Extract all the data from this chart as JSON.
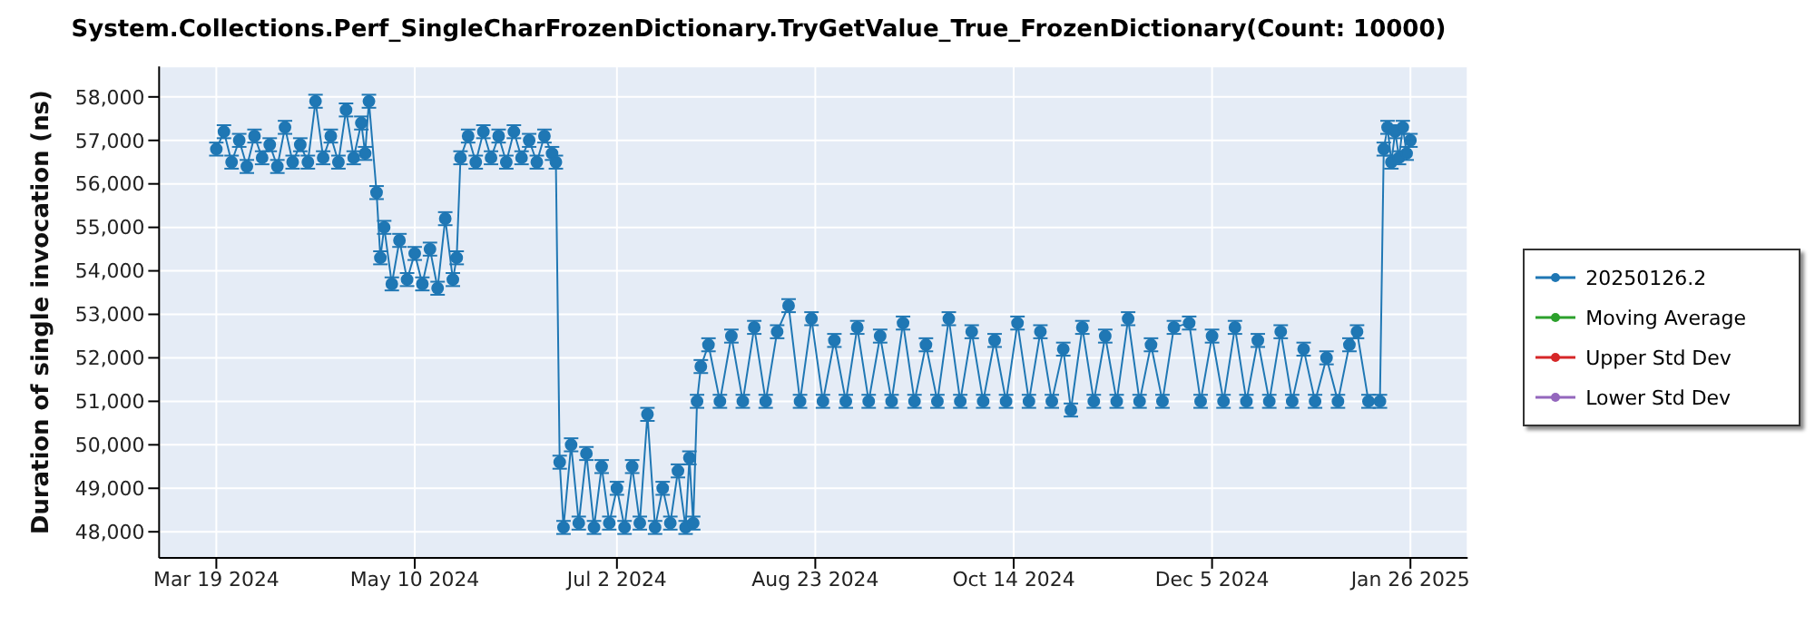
{
  "chart_data": {
    "type": "line",
    "title": "System.Collections.Perf_SingleCharFrozenDictionary.TryGetValue_True_FrozenDictionary(Count: 10000)",
    "ylabel": "Duration of single invocation (ns)",
    "xlim": [
      "2024-03-04",
      "2025-02-10"
    ],
    "xticks": [
      {
        "value": "2024-03-19",
        "label": "Mar 19 2024"
      },
      {
        "value": "2024-05-10",
        "label": "May 10 2024"
      },
      {
        "value": "2024-07-02",
        "label": "Jul 2 2024"
      },
      {
        "value": "2024-08-23",
        "label": "Aug 23 2024"
      },
      {
        "value": "2024-10-14",
        "label": "Oct 14 2024"
      },
      {
        "value": "2024-12-05",
        "label": "Dec 5 2024"
      },
      {
        "value": "2025-01-26",
        "label": "Jan 26 2025"
      }
    ],
    "ylim": [
      47400,
      58700
    ],
    "yticks": [
      {
        "value": 48000,
        "label": "48,000"
      },
      {
        "value": 49000,
        "label": "49,000"
      },
      {
        "value": 50000,
        "label": "50,000"
      },
      {
        "value": 51000,
        "label": "51,000"
      },
      {
        "value": 52000,
        "label": "52,000"
      },
      {
        "value": 53000,
        "label": "53,000"
      },
      {
        "value": 54000,
        "label": "54,000"
      },
      {
        "value": 55000,
        "label": "55,000"
      },
      {
        "value": 56000,
        "label": "56,000"
      },
      {
        "value": 57000,
        "label": "57,000"
      },
      {
        "value": 58000,
        "label": "58,000"
      }
    ],
    "grid": true,
    "legend": "right",
    "marker": "circle",
    "line_style": "solid",
    "series": [
      {
        "name": "20250126.2",
        "color": "#1f77b4",
        "x": [
          "2024-03-19",
          "2024-03-21",
          "2024-03-23",
          "2024-03-25",
          "2024-03-27",
          "2024-03-29",
          "2024-03-31",
          "2024-04-02",
          "2024-04-04",
          "2024-04-06",
          "2024-04-08",
          "2024-04-10",
          "2024-04-12",
          "2024-04-14",
          "2024-04-16",
          "2024-04-18",
          "2024-04-20",
          "2024-04-22",
          "2024-04-24",
          "2024-04-26",
          "2024-04-27",
          "2024-04-28",
          "2024-04-30",
          "2024-05-01",
          "2024-05-02",
          "2024-05-04",
          "2024-05-06",
          "2024-05-08",
          "2024-05-10",
          "2024-05-12",
          "2024-05-14",
          "2024-05-16",
          "2024-05-18",
          "2024-05-20",
          "2024-05-21",
          "2024-05-22",
          "2024-05-24",
          "2024-05-26",
          "2024-05-28",
          "2024-05-30",
          "2024-06-01",
          "2024-06-03",
          "2024-06-05",
          "2024-06-07",
          "2024-06-09",
          "2024-06-11",
          "2024-06-13",
          "2024-06-15",
          "2024-06-16",
          "2024-06-17",
          "2024-06-18",
          "2024-06-20",
          "2024-06-22",
          "2024-06-24",
          "2024-06-26",
          "2024-06-28",
          "2024-06-30",
          "2024-07-02",
          "2024-07-04",
          "2024-07-06",
          "2024-07-08",
          "2024-07-10",
          "2024-07-12",
          "2024-07-14",
          "2024-07-16",
          "2024-07-18",
          "2024-07-20",
          "2024-07-21",
          "2024-07-22",
          "2024-07-23",
          "2024-07-24",
          "2024-07-26",
          "2024-07-29",
          "2024-08-01",
          "2024-08-04",
          "2024-08-07",
          "2024-08-10",
          "2024-08-13",
          "2024-08-16",
          "2024-08-19",
          "2024-08-22",
          "2024-08-25",
          "2024-08-28",
          "2024-08-31",
          "2024-09-03",
          "2024-09-06",
          "2024-09-09",
          "2024-09-12",
          "2024-09-15",
          "2024-09-18",
          "2024-09-21",
          "2024-09-24",
          "2024-09-27",
          "2024-09-30",
          "2024-10-03",
          "2024-10-06",
          "2024-10-09",
          "2024-10-12",
          "2024-10-15",
          "2024-10-18",
          "2024-10-21",
          "2024-10-24",
          "2024-10-27",
          "2024-10-29",
          "2024-11-01",
          "2024-11-04",
          "2024-11-07",
          "2024-11-10",
          "2024-11-13",
          "2024-11-16",
          "2024-11-19",
          "2024-11-22",
          "2024-11-25",
          "2024-11-29",
          "2024-12-02",
          "2024-12-05",
          "2024-12-08",
          "2024-12-11",
          "2024-12-14",
          "2024-12-17",
          "2024-12-20",
          "2024-12-23",
          "2024-12-26",
          "2024-12-29",
          "2025-01-01",
          "2025-01-04",
          "2025-01-07",
          "2025-01-10",
          "2025-01-12",
          "2025-01-15",
          "2025-01-18",
          "2025-01-19",
          "2025-01-20",
          "2025-01-21",
          "2025-01-22",
          "2025-01-23",
          "2025-01-24",
          "2025-01-25",
          "2025-01-26"
        ],
        "values": [
          56800,
          57200,
          56500,
          57000,
          56400,
          57100,
          56600,
          56900,
          56400,
          57300,
          56500,
          56900,
          56500,
          57900,
          56600,
          57100,
          56500,
          57700,
          56600,
          57400,
          56700,
          57900,
          55800,
          54300,
          55000,
          53700,
          54700,
          53800,
          54400,
          53700,
          54500,
          53600,
          55200,
          53800,
          54300,
          56600,
          57100,
          56500,
          57200,
          56600,
          57100,
          56500,
          57200,
          56600,
          57000,
          56500,
          57100,
          56700,
          56500,
          49600,
          48100,
          50000,
          48200,
          49800,
          48100,
          49500,
          48200,
          49000,
          48100,
          49500,
          48200,
          50700,
          48100,
          49000,
          48200,
          49400,
          48100,
          49700,
          48200,
          51000,
          51800,
          52300,
          51000,
          52500,
          51000,
          52700,
          51000,
          52600,
          53200,
          51000,
          52900,
          51000,
          52400,
          51000,
          52700,
          51000,
          52500,
          51000,
          52800,
          51000,
          52300,
          51000,
          52900,
          51000,
          52600,
          51000,
          52400,
          51000,
          52800,
          51000,
          52600,
          51000,
          52200,
          50800,
          52700,
          51000,
          52500,
          51000,
          52900,
          51000,
          52300,
          51000,
          52700,
          52800,
          51000,
          52500,
          51000,
          52700,
          51000,
          52400,
          51000,
          52600,
          51000,
          52200,
          51000,
          52000,
          51000,
          52300,
          52600,
          51000,
          51000,
          56800,
          57300,
          56500,
          57200,
          56600,
          57300,
          56700,
          57000
        ],
        "errors": [
          150,
          150,
          150,
          150,
          150,
          150,
          150,
          150,
          150,
          150,
          150,
          150,
          150,
          150,
          150,
          150,
          150,
          150,
          150,
          150,
          150,
          150,
          150,
          150,
          150,
          150,
          150,
          150,
          150,
          150,
          150,
          150,
          150,
          150,
          150,
          150,
          150,
          150,
          150,
          150,
          150,
          150,
          150,
          150,
          150,
          150,
          150,
          150,
          150,
          150,
          150,
          150,
          150,
          150,
          150,
          150,
          150,
          150,
          150,
          150,
          150,
          150,
          150,
          150,
          150,
          150,
          150,
          150,
          150,
          150,
          150,
          150,
          150,
          150,
          150,
          150,
          150,
          150,
          150,
          150,
          150,
          150,
          150,
          150,
          150,
          150,
          150,
          150,
          150,
          150,
          150,
          150,
          150,
          150,
          150,
          150,
          150,
          150,
          150,
          150,
          150,
          150,
          150,
          150,
          150,
          150,
          150,
          150,
          150,
          150,
          150,
          150,
          150,
          150,
          150,
          150,
          150,
          150,
          150,
          150,
          150,
          150,
          150,
          150,
          150,
          150,
          150,
          150,
          150,
          150,
          150,
          150,
          150,
          150,
          150,
          150,
          150,
          150,
          150
        ]
      },
      {
        "name": "Moving Average",
        "color": "#2ca02c"
      },
      {
        "name": "Upper Std Dev",
        "color": "#d62728"
      },
      {
        "name": "Lower Std Dev",
        "color": "#9467bd"
      }
    ]
  }
}
